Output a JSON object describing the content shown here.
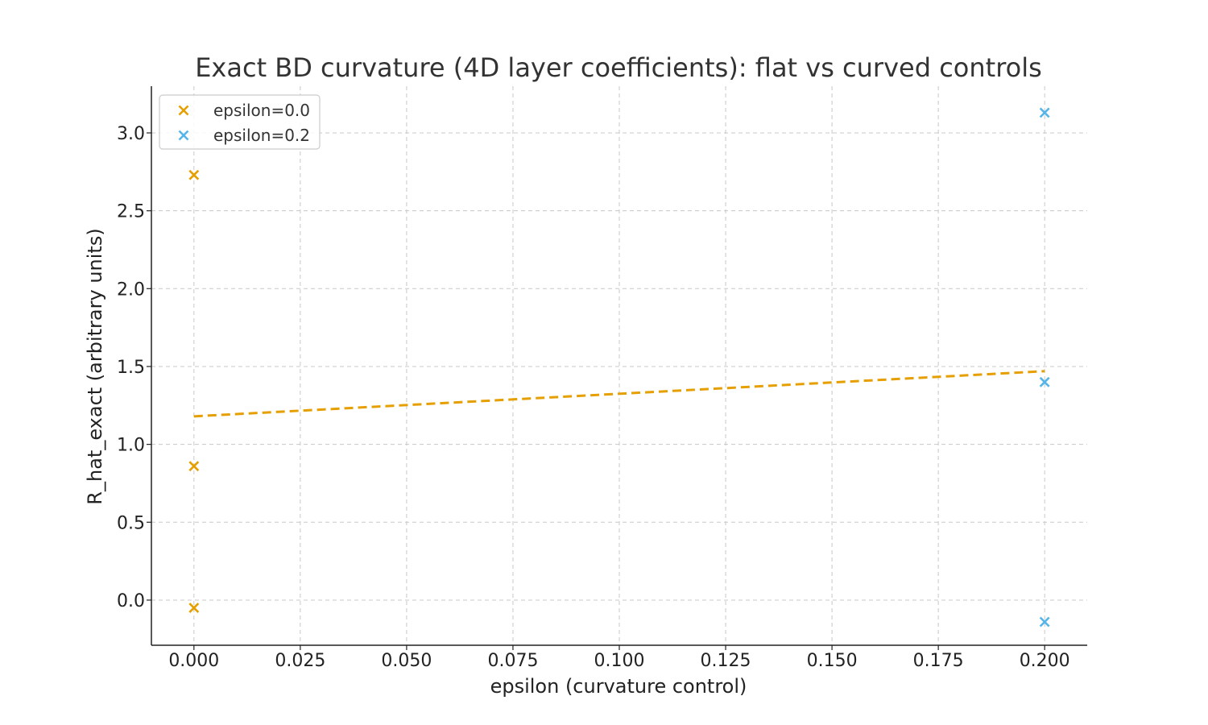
{
  "chart_data": {
    "type": "scatter",
    "title": "Exact BD curvature (4D layer coefficients): flat vs curved controls",
    "xlabel": "epsilon (curvature control)",
    "ylabel": "R_hat_exact (arbitrary units)",
    "xlim": [
      -0.01,
      0.21
    ],
    "ylim": [
      -0.29,
      3.3
    ],
    "xticks": [
      0.0,
      0.025,
      0.05,
      0.075,
      0.1,
      0.125,
      0.15,
      0.175,
      0.2
    ],
    "xtick_labels": [
      "0.000",
      "0.025",
      "0.050",
      "0.075",
      "0.100",
      "0.125",
      "0.150",
      "0.175",
      "0.200"
    ],
    "yticks": [
      0.0,
      0.5,
      1.0,
      1.5,
      2.0,
      2.5,
      3.0
    ],
    "ytick_labels": [
      "0.0",
      "0.5",
      "1.0",
      "1.5",
      "2.0",
      "2.5",
      "3.0"
    ],
    "grid": true,
    "legend_position": "top-left",
    "series": [
      {
        "name": "epsilon=0.0",
        "marker": "x",
        "color": "#E69F00",
        "points": [
          {
            "x": 0.0,
            "y": 2.73
          },
          {
            "x": 0.0,
            "y": 0.86
          },
          {
            "x": 0.0,
            "y": -0.05
          }
        ]
      },
      {
        "name": "epsilon=0.2",
        "marker": "x",
        "color": "#56B4E9",
        "points": [
          {
            "x": 0.2,
            "y": 3.13
          },
          {
            "x": 0.2,
            "y": 1.4
          },
          {
            "x": 0.2,
            "y": -0.14
          }
        ]
      }
    ],
    "fit_line": {
      "style": "dashed",
      "color": "#E69F00",
      "x": [
        0.0,
        0.2
      ],
      "y": [
        1.18,
        1.47
      ]
    }
  }
}
